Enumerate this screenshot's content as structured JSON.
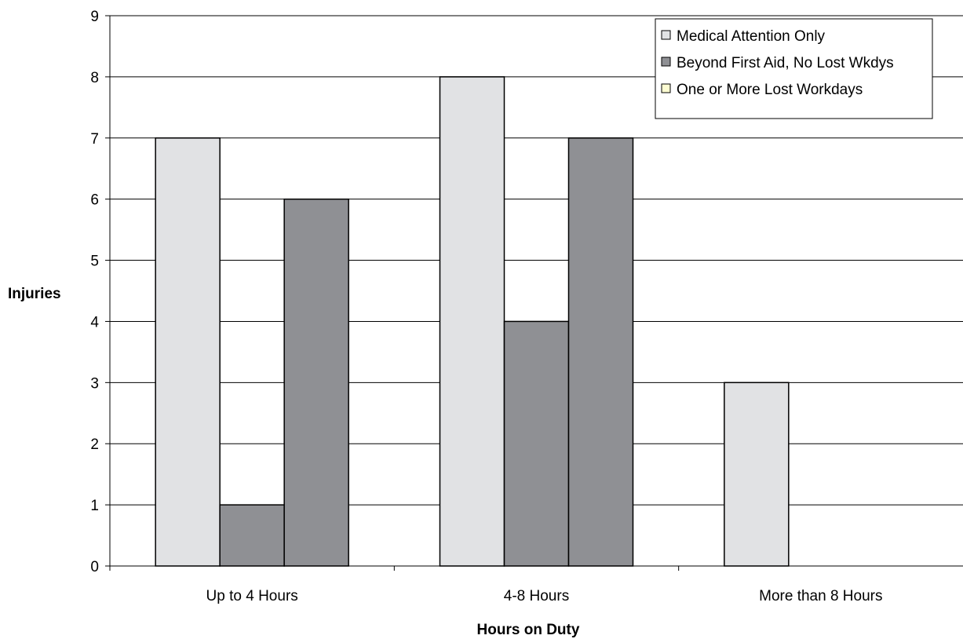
{
  "chart_data": {
    "type": "bar",
    "title": "",
    "xlabel": "Hours on Duty",
    "ylabel": "Injuries",
    "categories": [
      "Up to 4 Hours",
      "4-8 Hours",
      "More than 8 Hours"
    ],
    "ylim": [
      0,
      9
    ],
    "yticks": [
      0,
      1,
      2,
      3,
      4,
      5,
      6,
      7,
      8,
      9
    ],
    "grid": true,
    "legend_position": "top-right",
    "series": [
      {
        "name": "Medical  Attention Only",
        "values": [
          7,
          8,
          3
        ],
        "color": "#e1e2e4"
      },
      {
        "name": "Beyond First Aid, No Lost Wkdys",
        "values": [
          1,
          4,
          0
        ],
        "color": "#8f9094"
      },
      {
        "name": "One or More Lost Workdays",
        "values": [
          6,
          7,
          0
        ],
        "color": "#fdfdd2"
      }
    ],
    "bar_colors_as_rendered": [
      [
        "#e1e2e4",
        "#8f9094",
        "#8f9094"
      ],
      [
        "#e1e2e4",
        "#8f9094",
        "#8f9094"
      ],
      [
        "#e1e2e4",
        "#8f9094",
        "#8f9094"
      ]
    ]
  }
}
